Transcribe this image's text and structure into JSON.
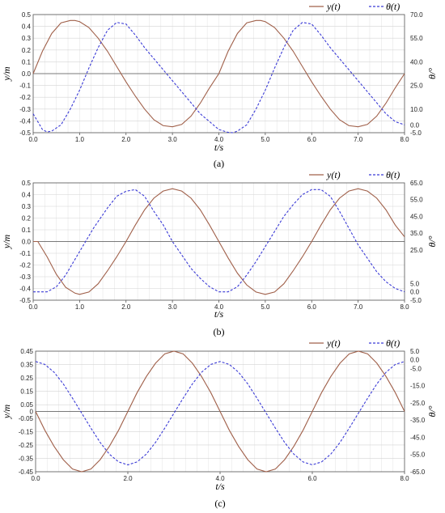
{
  "chart_data": [
    {
      "type": "line",
      "caption": "(a)",
      "xlabel": "t/s",
      "ylabel": "y/m",
      "y2label": "θ/°",
      "xlim": [
        0,
        8
      ],
      "ylim": [
        -0.5,
        0.5
      ],
      "y2lim": [
        -5,
        70
      ],
      "x_ticks": [
        "0.0",
        "1.0",
        "2.0",
        "3.0",
        "4.0",
        "5.0",
        "6.0",
        "7.0",
        "8.0"
      ],
      "y_ticks": [
        "-0.5",
        "-0.4",
        "-0.3",
        "-0.2",
        "-0.1",
        "0.0",
        "0.1",
        "0.2",
        "0.3",
        "0.4",
        "0.5"
      ],
      "y2_ticks": [
        "-5.0",
        "0.0",
        "10.0",
        "25.0",
        "40.0",
        "55.0",
        "70.0"
      ],
      "legend_position": "top-right",
      "series": [
        {
          "name": "y(t)",
          "axis": "left",
          "color": "#a0604a",
          "dash": "solid",
          "x": [
            0,
            0.2,
            0.4,
            0.6,
            0.8,
            0.9,
            1.0,
            1.2,
            1.4,
            1.6,
            1.8,
            2.0,
            2.2,
            2.4,
            2.6,
            2.8,
            3.0,
            3.2,
            3.4,
            3.6,
            3.8,
            4.0,
            4.2,
            4.4,
            4.6,
            4.8,
            4.9,
            5.0,
            5.2,
            5.4,
            5.6,
            5.8,
            6.0,
            6.2,
            6.4,
            6.6,
            6.8,
            7.0,
            7.2,
            7.4,
            7.6,
            7.8,
            8.0
          ],
          "y": [
            0,
            0.19,
            0.34,
            0.43,
            0.45,
            0.45,
            0.44,
            0.39,
            0.3,
            0.19,
            0.06,
            -0.07,
            -0.19,
            -0.3,
            -0.39,
            -0.44,
            -0.45,
            -0.43,
            -0.36,
            -0.25,
            -0.12,
            0,
            0.19,
            0.34,
            0.43,
            0.45,
            0.45,
            0.44,
            0.39,
            0.3,
            0.19,
            0.06,
            -0.07,
            -0.19,
            -0.3,
            -0.39,
            -0.44,
            -0.45,
            -0.43,
            -0.36,
            -0.25,
            -0.12,
            0
          ]
        },
        {
          "name": "θ(t)",
          "axis": "right",
          "color": "#3b3bd6",
          "dash": "dashed",
          "x": [
            0,
            0.2,
            0.3,
            0.4,
            0.6,
            0.8,
            1.0,
            1.2,
            1.4,
            1.6,
            1.8,
            2.0,
            2.2,
            2.4,
            2.6,
            2.8,
            3.0,
            3.2,
            3.4,
            3.6,
            3.8,
            4.0,
            4.2,
            4.3,
            4.4,
            4.6,
            4.8,
            5.0,
            5.2,
            5.4,
            5.6,
            5.8,
            6.0,
            6.2,
            6.4,
            6.6,
            6.8,
            7.0,
            7.2,
            7.4,
            7.6,
            7.8,
            8.0
          ],
          "y": [
            7,
            -3,
            -4.5,
            -4,
            0,
            10,
            22,
            36,
            49,
            60,
            65,
            64,
            57,
            49,
            42,
            35,
            28,
            21,
            14,
            7,
            2,
            -3,
            -4.8,
            -5,
            -4,
            0,
            10,
            22,
            36,
            49,
            60,
            65,
            64,
            57,
            49,
            42,
            35,
            28,
            21,
            14,
            7,
            2,
            0
          ]
        }
      ]
    },
    {
      "type": "line",
      "caption": "(b)",
      "xlabel": "t/s",
      "ylabel": "y/m",
      "y2label": "θ/°",
      "xlim": [
        0,
        8
      ],
      "ylim": [
        -0.5,
        0.5
      ],
      "y2lim": [
        -5,
        65
      ],
      "x_ticks": [
        "0.0",
        "1.0",
        "2.0",
        "3.0",
        "4.0",
        "5.0",
        "6.0",
        "7.0",
        "8.0"
      ],
      "y_ticks": [
        "-0.5",
        "-0.4",
        "-0.3",
        "-0.2",
        "-0.1",
        "0.0",
        "0.1",
        "0.2",
        "0.3",
        "0.4",
        "0.5"
      ],
      "y2_ticks": [
        "-5.0",
        "0.0",
        "5.0",
        "25.0",
        "35.0",
        "45.0",
        "55.0",
        "65.0"
      ],
      "legend_position": "top-right",
      "series": [
        {
          "name": "y(t)",
          "axis": "left",
          "color": "#a0604a",
          "dash": "solid",
          "x": [
            0,
            0.1,
            0.3,
            0.5,
            0.7,
            0.9,
            1.0,
            1.2,
            1.4,
            1.6,
            1.8,
            2.0,
            2.2,
            2.4,
            2.6,
            2.8,
            3.0,
            3.2,
            3.4,
            3.6,
            3.8,
            4.0,
            4.2,
            4.4,
            4.6,
            4.8,
            5.0,
            5.2,
            5.4,
            5.6,
            5.8,
            6.0,
            6.2,
            6.4,
            6.6,
            6.8,
            7.0,
            7.2,
            7.4,
            7.6,
            7.8,
            8.0
          ],
          "y": [
            0,
            0,
            -0.13,
            -0.28,
            -0.39,
            -0.44,
            -0.45,
            -0.43,
            -0.36,
            -0.25,
            -0.13,
            0,
            0.14,
            0.27,
            0.37,
            0.43,
            0.45,
            0.43,
            0.37,
            0.27,
            0.14,
            0,
            -0.14,
            -0.27,
            -0.37,
            -0.43,
            -0.45,
            -0.43,
            -0.36,
            -0.25,
            -0.13,
            0,
            0.14,
            0.27,
            0.37,
            0.43,
            0.45,
            0.43,
            0.37,
            0.27,
            0.14,
            0.04
          ]
        },
        {
          "name": "θ(t)",
          "axis": "right",
          "color": "#3b3bd6",
          "dash": "dashed",
          "x": [
            0,
            0.3,
            0.5,
            0.7,
            1.0,
            1.3,
            1.6,
            1.8,
            2.0,
            2.2,
            2.4,
            2.6,
            2.8,
            3.0,
            3.2,
            3.4,
            3.6,
            3.8,
            4.0,
            4.2,
            4.4,
            4.6,
            4.8,
            5.0,
            5.2,
            5.4,
            5.6,
            5.8,
            6.0,
            6.2,
            6.4,
            6.6,
            6.8,
            7.0,
            7.2,
            7.4,
            7.6,
            7.8,
            8.0
          ],
          "y": [
            0,
            0,
            3,
            10,
            24,
            38,
            50,
            57,
            60,
            61,
            57,
            48,
            40,
            30,
            22,
            14,
            8,
            3,
            0,
            0,
            3,
            10,
            18,
            27,
            36,
            45,
            52,
            58,
            61,
            61,
            57,
            48,
            38,
            28,
            20,
            12,
            6,
            2,
            0
          ]
        }
      ]
    },
    {
      "type": "line",
      "caption": "(c)",
      "xlabel": "t/s",
      "ylabel": "y/m",
      "y2label": "θ/°",
      "xlim": [
        0,
        8
      ],
      "ylim": [
        -0.45,
        0.45
      ],
      "y2lim": [
        -65,
        5
      ],
      "x_ticks": [
        "0.0",
        "2.0",
        "4.0",
        "6.0",
        "8.0"
      ],
      "y_ticks": [
        "-0.45",
        "-0.35",
        "-0.25",
        "-0.15",
        "-0.05",
        "0",
        "0.05",
        "0.15",
        "0.25",
        "0.35",
        "0.45"
      ],
      "y2_ticks": [
        "-65.0",
        "-55.0",
        "-45.0",
        "-35.0",
        "-25.0",
        "-15.0",
        "-5.0",
        "0.0",
        "5.0"
      ],
      "legend_position": "top-right",
      "series": [
        {
          "name": "y(t)",
          "axis": "left",
          "color": "#a0604a",
          "dash": "solid",
          "x": [
            0,
            0.2,
            0.4,
            0.6,
            0.8,
            1.0,
            1.2,
            1.4,
            1.6,
            1.8,
            2.0,
            2.2,
            2.4,
            2.6,
            2.8,
            3.0,
            3.2,
            3.4,
            3.6,
            3.8,
            4.0,
            4.2,
            4.4,
            4.6,
            4.8,
            5.0,
            5.2,
            5.4,
            5.6,
            5.8,
            6.0,
            6.2,
            6.4,
            6.6,
            6.8,
            7.0,
            7.2,
            7.4,
            7.6,
            7.8,
            8.0
          ],
          "y": [
            0,
            -0.14,
            -0.26,
            -0.36,
            -0.43,
            -0.45,
            -0.43,
            -0.36,
            -0.26,
            -0.14,
            0,
            0.14,
            0.26,
            0.36,
            0.43,
            0.45,
            0.43,
            0.36,
            0.26,
            0.14,
            0,
            -0.14,
            -0.26,
            -0.36,
            -0.43,
            -0.45,
            -0.43,
            -0.36,
            -0.26,
            -0.14,
            0,
            0.14,
            0.26,
            0.36,
            0.43,
            0.45,
            0.43,
            0.36,
            0.26,
            0.14,
            0
          ]
        },
        {
          "name": "θ(t)",
          "axis": "right",
          "color": "#3b3bd6",
          "dash": "dashed",
          "x": [
            0,
            0.2,
            0.4,
            0.6,
            0.8,
            1.0,
            1.2,
            1.4,
            1.6,
            1.8,
            2.0,
            2.2,
            2.4,
            2.6,
            2.8,
            3.0,
            3.2,
            3.4,
            3.6,
            3.8,
            4.0,
            4.2,
            4.4,
            4.6,
            4.8,
            5.0,
            5.2,
            5.4,
            5.6,
            5.8,
            6.0,
            6.2,
            6.4,
            6.6,
            6.8,
            7.0,
            7.2,
            7.4,
            7.6,
            7.8,
            8.0
          ],
          "y": [
            -1,
            -2.7,
            -7.2,
            -14,
            -22.3,
            -31,
            -39.7,
            -48,
            -54.8,
            -59.3,
            -61,
            -59.3,
            -54.8,
            -48,
            -39.7,
            -31,
            -22.3,
            -14,
            -7.2,
            -2.7,
            -1,
            -2.7,
            -7.2,
            -14,
            -22.3,
            -31,
            -39.7,
            -48,
            -54.8,
            -59.3,
            -61,
            -59.3,
            -54.8,
            -48,
            -39.7,
            -31,
            -22.3,
            -14,
            -7.2,
            -2.7,
            -1
          ]
        }
      ]
    }
  ]
}
